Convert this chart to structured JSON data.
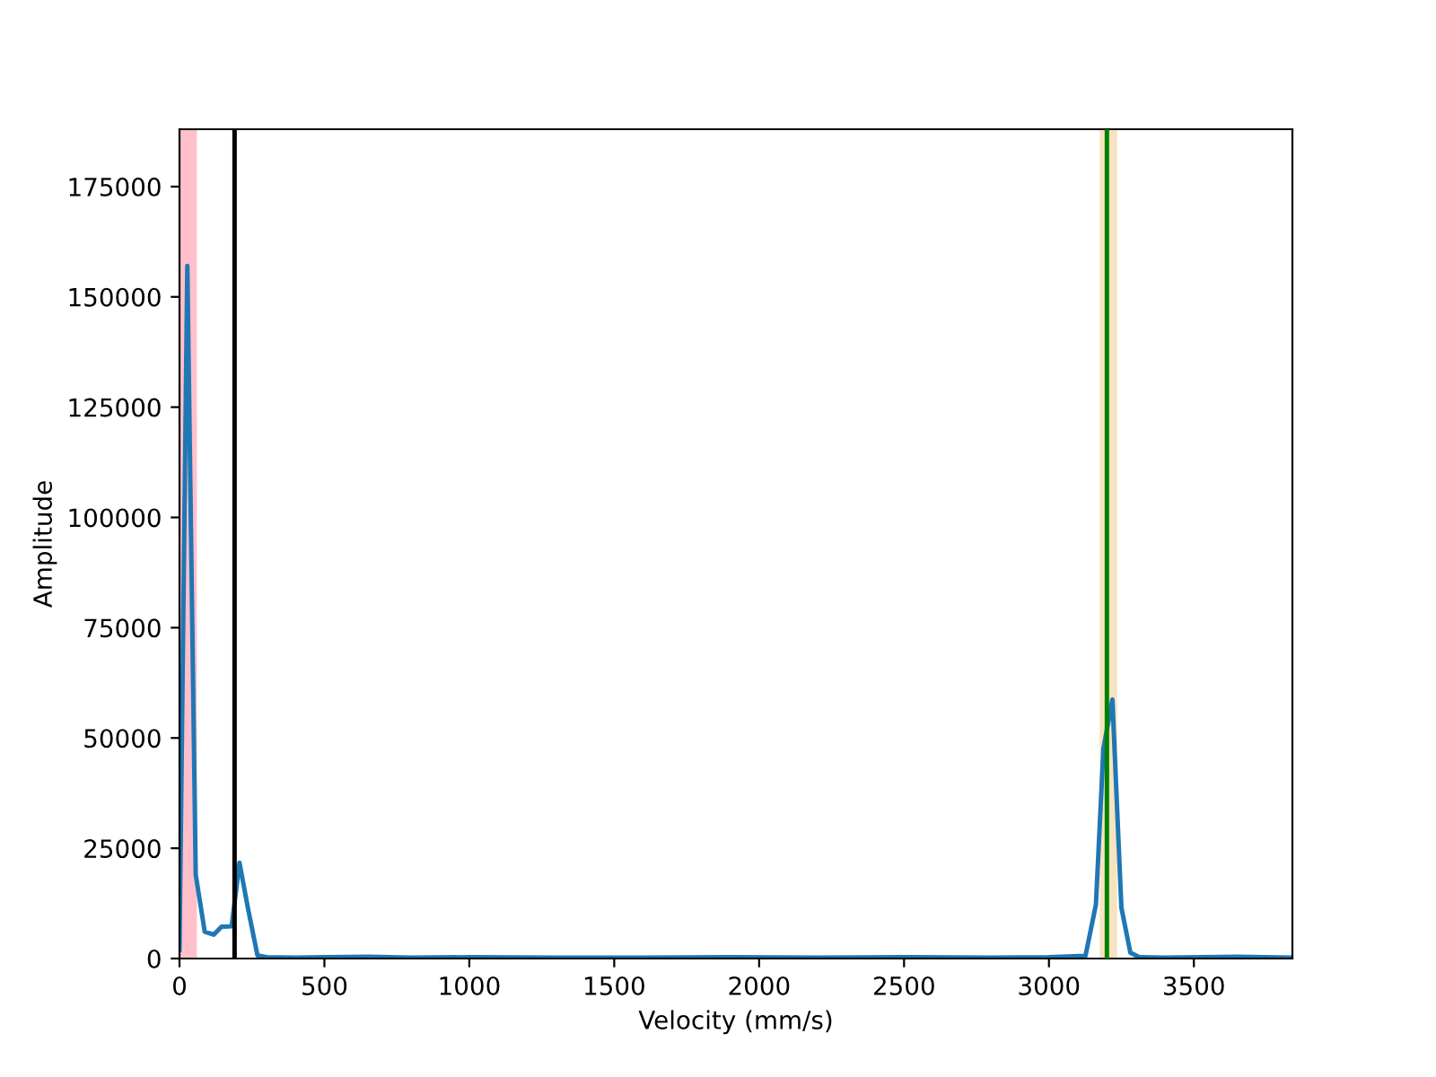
{
  "chart_data": {
    "type": "line",
    "xlabel": "Velocity (mm/s)",
    "ylabel": "Amplitude",
    "series": [
      {
        "color": "#1f77b4",
        "x": [
          0,
          27,
          56,
          87,
          118,
          145,
          180,
          207,
          238,
          269,
          300,
          400,
          500,
          650,
          800,
          1000,
          1300,
          1600,
          1900,
          2200,
          2500,
          2800,
          3000,
          3126,
          3162,
          3188,
          3219,
          3250,
          3281,
          3312,
          3400,
          3650,
          3840
        ],
        "values": [
          2000,
          157000,
          19000,
          6100,
          5400,
          7200,
          7300,
          21700,
          10800,
          700,
          300,
          200,
          300,
          400,
          200,
          300,
          200,
          200,
          300,
          200,
          300,
          200,
          300,
          600,
          12200,
          47600,
          58700,
          11500,
          1300,
          300,
          200,
          400,
          200
        ]
      }
    ],
    "xlim": [
      0,
      3840
    ],
    "ylim": [
      0,
      188000
    ],
    "xticks": [
      0,
      500,
      1000,
      1500,
      2000,
      2500,
      3000,
      3500
    ],
    "yticks": [
      0,
      25000,
      50000,
      75000,
      100000,
      125000,
      150000,
      175000
    ],
    "bands": [
      {
        "axis": "x",
        "from": 0,
        "to": 60,
        "color": "#ffc0cb"
      },
      {
        "axis": "x",
        "from": 3175,
        "to": 3235,
        "color": "#f8e3c0"
      }
    ],
    "ref_lines": [
      {
        "axis": "x",
        "value": 190,
        "color": "#000000"
      },
      {
        "axis": "x",
        "value": 3200,
        "color": "#008000"
      }
    ],
    "grid": false,
    "legend": false
  }
}
